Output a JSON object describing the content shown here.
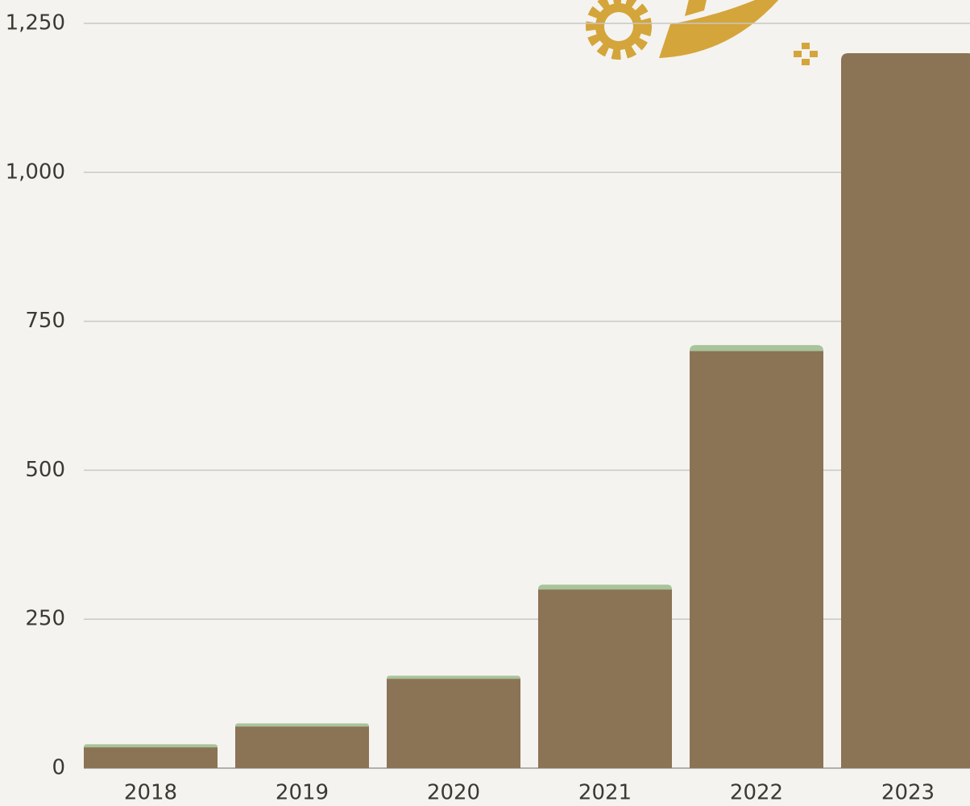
{
  "chart_data": {
    "type": "bar",
    "stacked": true,
    "categories": [
      "2018",
      "2019",
      "2020",
      "2021",
      "2022",
      "2023"
    ],
    "series": [
      {
        "color": "#8b7355",
        "values": [
          35,
          70,
          150,
          300,
          700,
          1200
        ]
      },
      {
        "color": "#a8c49a",
        "values": [
          5,
          5,
          5,
          8,
          10,
          0
        ]
      }
    ],
    "ylim": [
      0,
      1250
    ],
    "yticks": [
      0,
      250,
      500,
      750,
      {
        "value": 1000,
        "label": "1,000"
      },
      {
        "value": 1250,
        "label": "1,250"
      }
    ],
    "grid": true
  }
}
